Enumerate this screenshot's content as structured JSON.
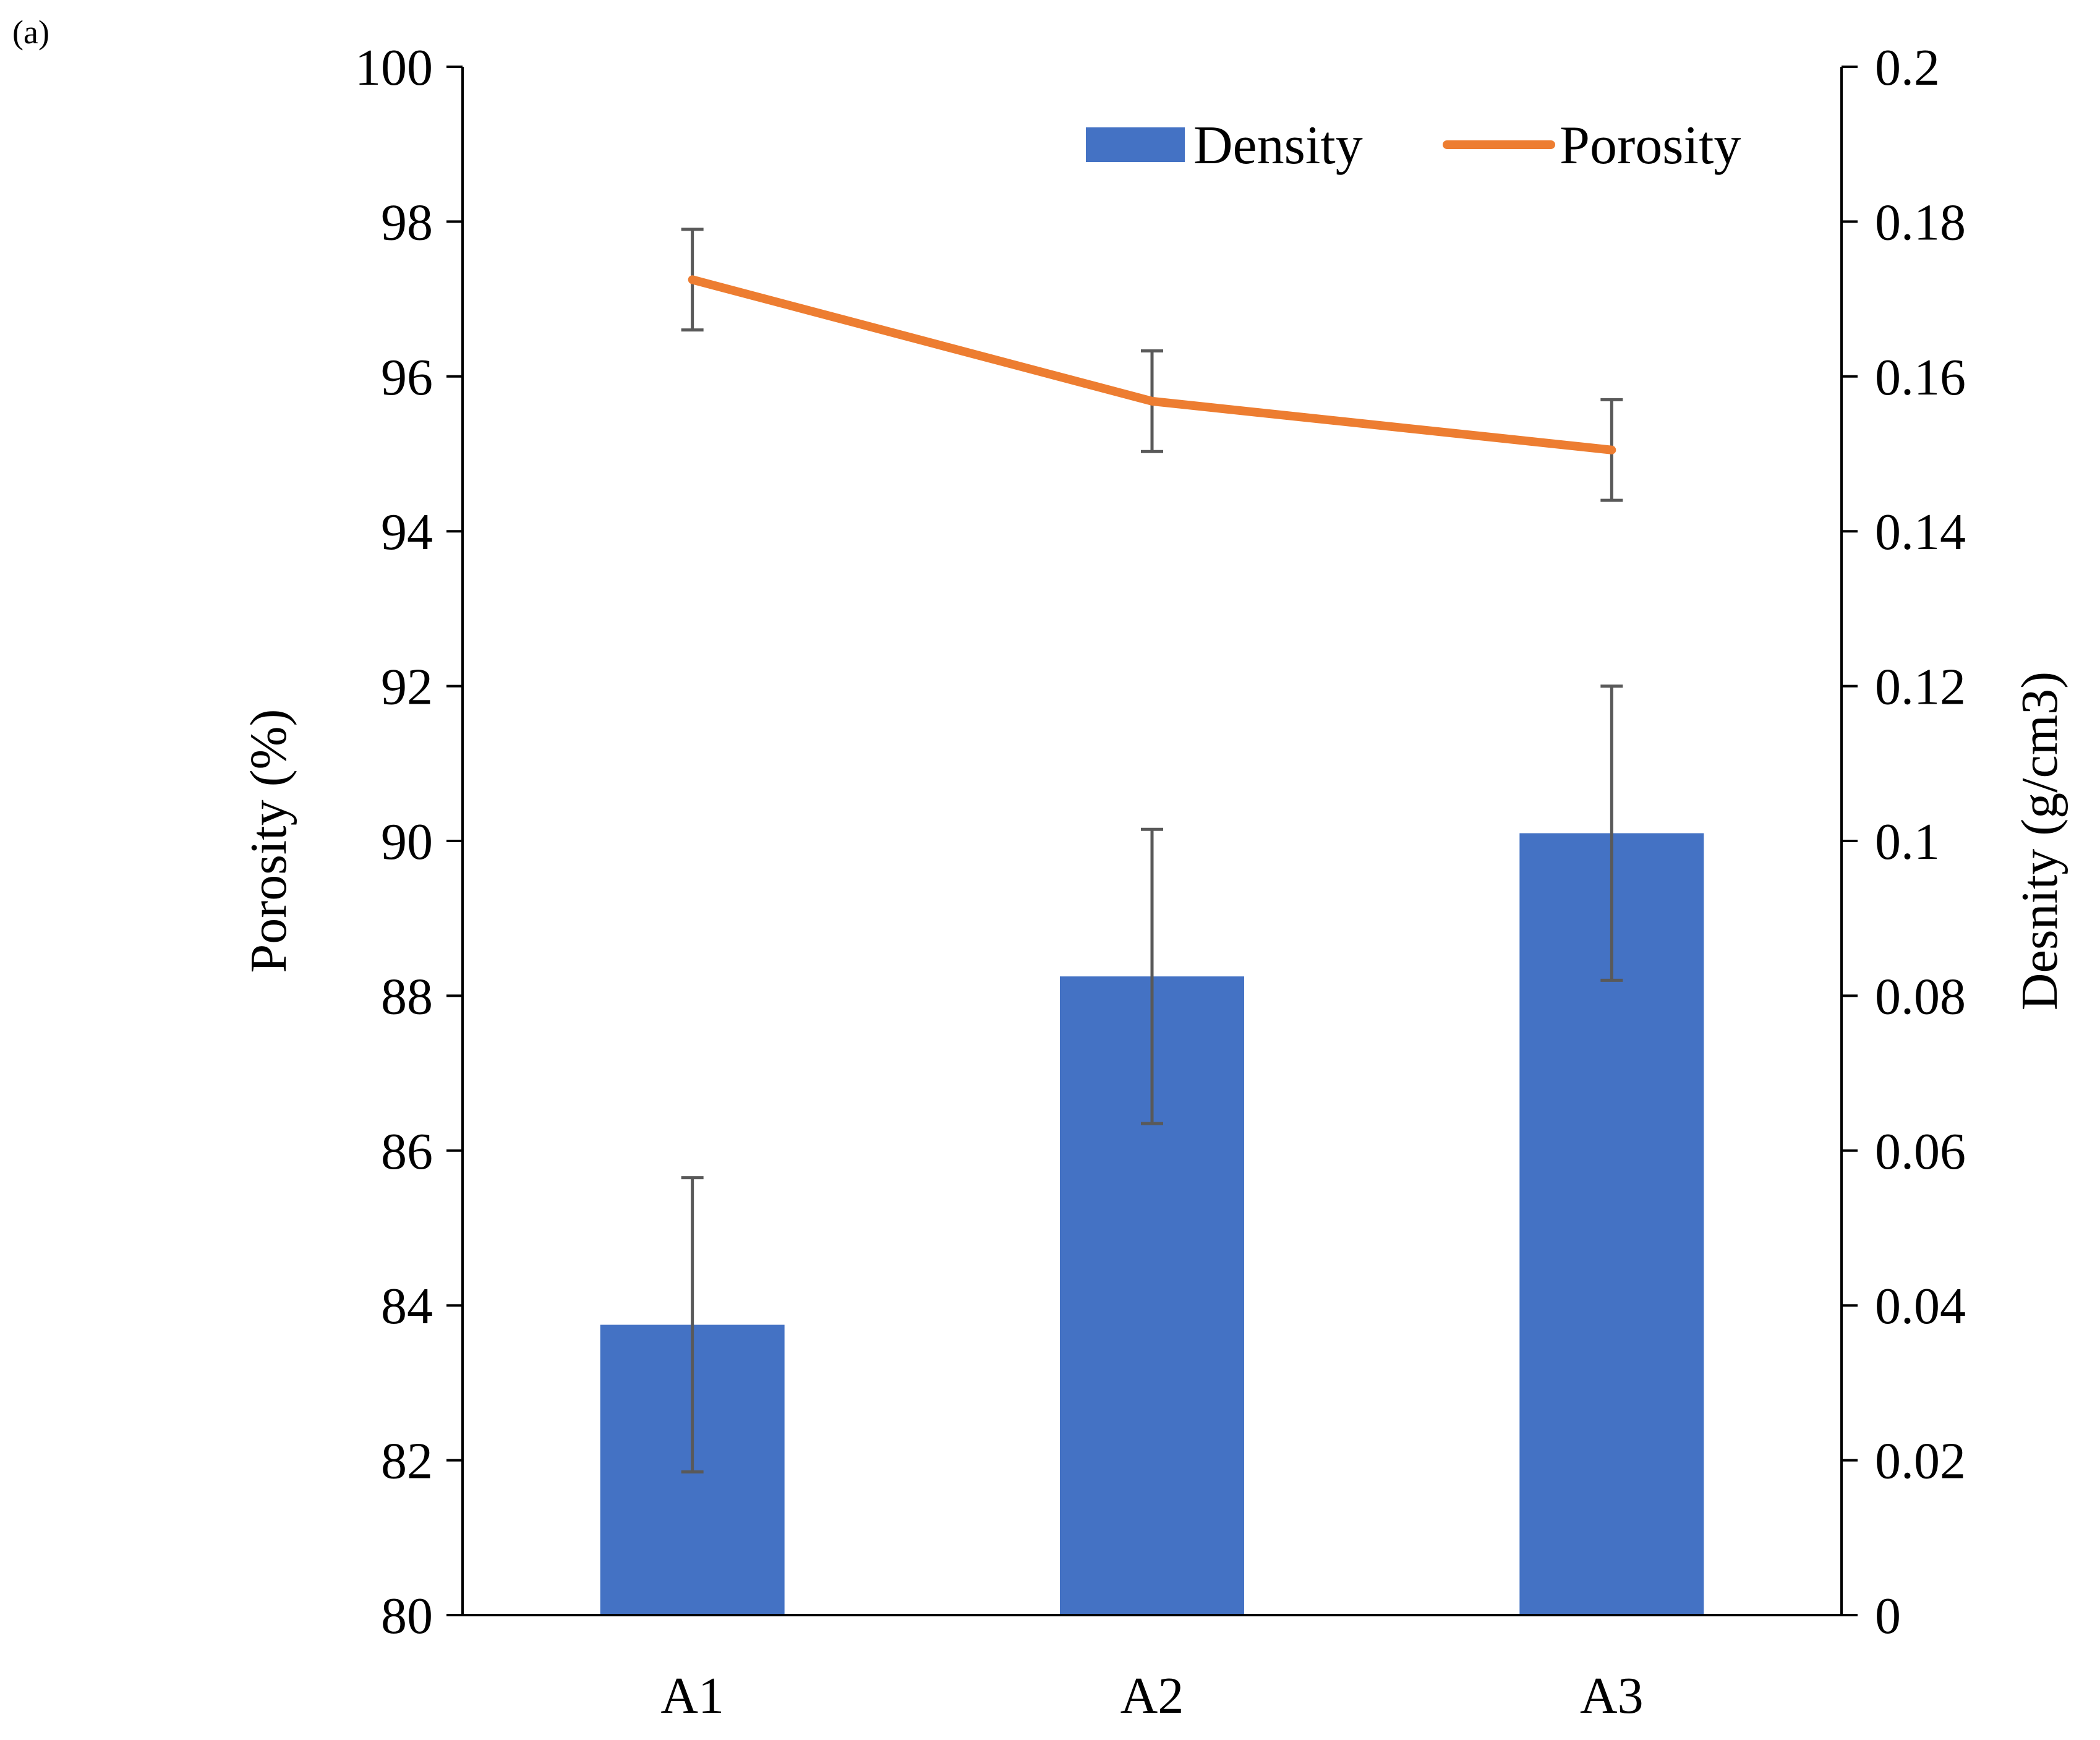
{
  "panel_label": "(a)",
  "chart_data": {
    "type": "bar",
    "categories": [
      "A1",
      "A2",
      "A3"
    ],
    "series": [
      {
        "name": "Density",
        "type": "bar",
        "axis": "right",
        "values": [
          0.0375,
          0.0825,
          0.101
        ],
        "error": [
          0.019,
          0.019,
          0.019
        ],
        "color": "#4472C4"
      },
      {
        "name": "Porosity",
        "type": "line",
        "axis": "left",
        "values": [
          97.25,
          95.68,
          95.05
        ],
        "error": [
          0.65,
          0.65,
          0.65
        ],
        "color": "#ED7D31"
      }
    ],
    "ylabel": "Porosity (%)",
    "ylim": [
      80,
      100
    ],
    "yticks": [
      "80",
      "82",
      "84",
      "86",
      "88",
      "90",
      "92",
      "94",
      "96",
      "98",
      "100"
    ],
    "y2label": "Desnity (g/cm3)",
    "y2lim": [
      0,
      0.2
    ],
    "y2ticks": [
      "0",
      "0.02",
      "0.04",
      "0.06",
      "0.08",
      "0.1",
      "0.12",
      "0.14",
      "0.16",
      "0.18",
      "0.2"
    ],
    "legend": [
      {
        "label": "Density",
        "kind": "bar"
      },
      {
        "label": "Porosity",
        "kind": "line"
      }
    ],
    "legend_position": "top-right",
    "grid": false,
    "error_bar_color": "#595959"
  }
}
